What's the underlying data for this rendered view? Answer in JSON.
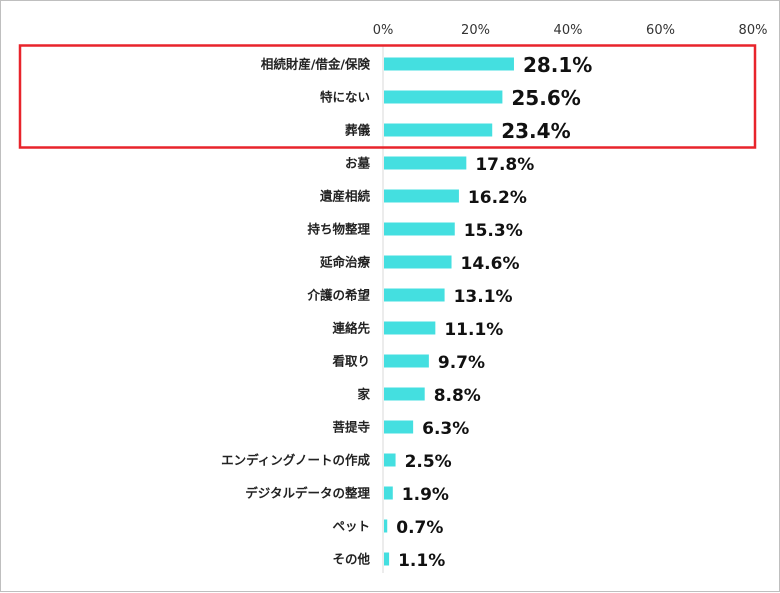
{
  "chart_data": {
    "type": "bar",
    "orientation": "horizontal",
    "categories": [
      "相続財産/借金/保険",
      "特にない",
      "葬儀",
      "お墓",
      "遺産相続",
      "持ち物整理",
      "延命治療",
      "介護の希望",
      "連絡先",
      "看取り",
      "家",
      "菩提寺",
      "エンディングノートの作成",
      "デジタルデータの整理",
      "ペット",
      "その他"
    ],
    "values": [
      28.1,
      25.6,
      23.4,
      17.8,
      16.2,
      15.3,
      14.6,
      13.1,
      11.1,
      9.7,
      8.8,
      6.3,
      2.5,
      1.9,
      0.7,
      1.1
    ],
    "value_labels": [
      "28.1%",
      "25.6%",
      "23.4%",
      "17.8%",
      "16.2%",
      "15.3%",
      "14.6%",
      "13.1%",
      "11.1%",
      "9.7%",
      "8.8%",
      "6.3%",
      "2.5%",
      "1.9%",
      "0.7%",
      "1.1%"
    ],
    "xlim": [
      0,
      80
    ],
    "x_ticks": [
      0,
      20,
      40,
      60,
      80
    ],
    "x_tick_labels": [
      "0%",
      "20%",
      "40%",
      "60%",
      "80%"
    ],
    "x_axis_position": "top",
    "grid": false,
    "highlighted_categories": 3,
    "colors": {
      "bar": "#44dfe0",
      "highlight_box": "#e8242b",
      "axis": "#d9d9d9"
    }
  }
}
